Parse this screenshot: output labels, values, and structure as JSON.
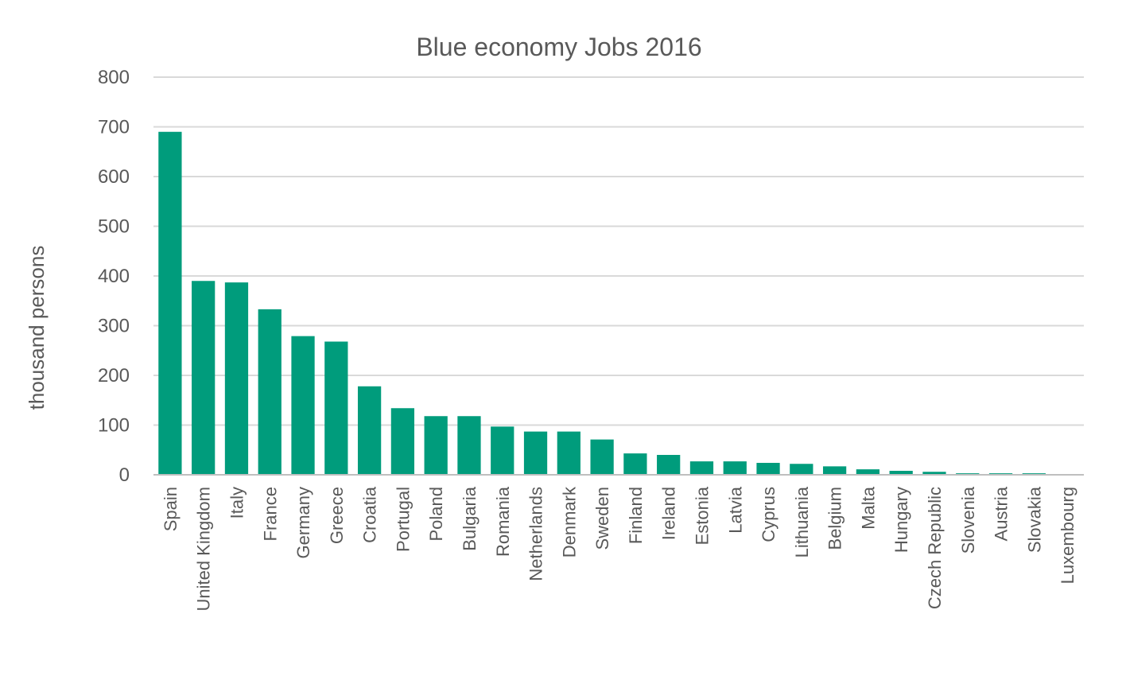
{
  "chart_data": {
    "type": "bar",
    "title": "Blue economy Jobs 2016",
    "xlabel": "",
    "ylabel": "thousand persons",
    "ylim": [
      0,
      800
    ],
    "yticks": [
      "0",
      "100",
      "200",
      "300",
      "400",
      "500",
      "600",
      "700",
      "800"
    ],
    "grid": true,
    "legend": "none",
    "bar_color": "#009c7c",
    "categories": [
      "Spain",
      "United Kingdom",
      "Italy",
      "France",
      "Germany",
      "Greece",
      "Croatia",
      "Portugal",
      "Poland",
      "Bulgaria",
      "Romania",
      "Netherlands",
      "Denmark",
      "Sweden",
      "Finland",
      "Ireland",
      "Estonia",
      "Latvia",
      "Cyprus",
      "Lithuania",
      "Belgium",
      "Malta",
      "Hungary",
      "Czech Republic",
      "Slovenia",
      "Austria",
      "Slovakia",
      "Luxembourg"
    ],
    "values": [
      690,
      390,
      387,
      333,
      279,
      268,
      178,
      134,
      118,
      118,
      97,
      87,
      87,
      71,
      43,
      40,
      27,
      27,
      24,
      22,
      17,
      11,
      8,
      6,
      3,
      3,
      3,
      0
    ]
  }
}
